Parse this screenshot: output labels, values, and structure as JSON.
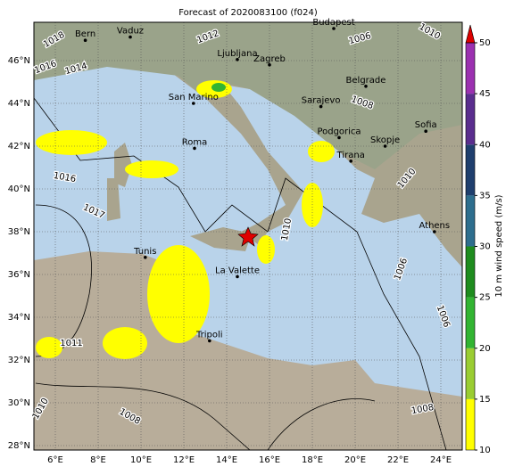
{
  "title": "Forecast of 2020083100 (f024)",
  "lon_ticks": [
    {
      "value": 6,
      "label": "6°E"
    },
    {
      "value": 8,
      "label": "8°E"
    },
    {
      "value": 10,
      "label": "10°E"
    },
    {
      "value": 12,
      "label": "12°E"
    },
    {
      "value": 14,
      "label": "14°E"
    },
    {
      "value": 16,
      "label": "16°E"
    },
    {
      "value": 18,
      "label": "18°E"
    },
    {
      "value": 20,
      "label": "20°E"
    },
    {
      "value": 22,
      "label": "22°E"
    },
    {
      "value": 24,
      "label": "24°E"
    }
  ],
  "lat_ticks": [
    {
      "value": 28,
      "label": "28°N"
    },
    {
      "value": 30,
      "label": "30°N"
    },
    {
      "value": 32,
      "label": "32°N"
    },
    {
      "value": 34,
      "label": "34°N"
    },
    {
      "value": 36,
      "label": "36°N"
    },
    {
      "value": 38,
      "label": "38°N"
    },
    {
      "value": 40,
      "label": "40°N"
    },
    {
      "value": 42,
      "label": "42°N"
    },
    {
      "value": 44,
      "label": "44°N"
    },
    {
      "value": 46,
      "label": "46°N"
    }
  ],
  "cities": [
    {
      "name": "Bern",
      "lon": 7.4,
      "lat": 46.95
    },
    {
      "name": "Vaduz",
      "lon": 9.5,
      "lat": 47.1
    },
    {
      "name": "Budapest",
      "lon": 19.0,
      "lat": 47.5
    },
    {
      "name": "Ljubljana",
      "lon": 14.5,
      "lat": 46.05
    },
    {
      "name": "Zagreb",
      "lon": 16.0,
      "lat": 45.8
    },
    {
      "name": "San Marino",
      "lon": 12.45,
      "lat": 44.0
    },
    {
      "name": "Belgrade",
      "lon": 20.5,
      "lat": 44.8
    },
    {
      "name": "Sarajevo",
      "lon": 18.4,
      "lat": 43.85
    },
    {
      "name": "Roma",
      "lon": 12.5,
      "lat": 41.9
    },
    {
      "name": "Podgorica",
      "lon": 19.25,
      "lat": 42.4
    },
    {
      "name": "Skopje",
      "lon": 21.4,
      "lat": 42.0
    },
    {
      "name": "Sofia",
      "lon": 23.3,
      "lat": 42.7
    },
    {
      "name": "Tirana",
      "lon": 19.8,
      "lat": 41.3
    },
    {
      "name": "Athens",
      "lon": 23.7,
      "lat": 38.0
    },
    {
      "name": "Tunis",
      "lon": 10.2,
      "lat": 36.8
    },
    {
      "name": "La Valette",
      "lon": 14.5,
      "lat": 35.9
    },
    {
      "name": "Tripoli",
      "lon": 13.2,
      "lat": 32.9
    }
  ],
  "isobar_labels": [
    "1018",
    "1016",
    "1014",
    "1012",
    "1010",
    "1006",
    "1008",
    "1016",
    "1017",
    "1011",
    "1010",
    "1008",
    "1008",
    "1006",
    "1010",
    "1006",
    "1010"
  ],
  "colorbar": {
    "label": "10 m wind speed (m/s)",
    "ticks": [
      10,
      15,
      20,
      25,
      30,
      35,
      40,
      45,
      50
    ],
    "colors": [
      "#ffff00",
      "#9acd32",
      "#32b432",
      "#1e8c1e",
      "#2e6e8e",
      "#1f3f6e",
      "#5a2d8e",
      "#9b30b0"
    ],
    "extend_color": "#dd0000"
  }
}
